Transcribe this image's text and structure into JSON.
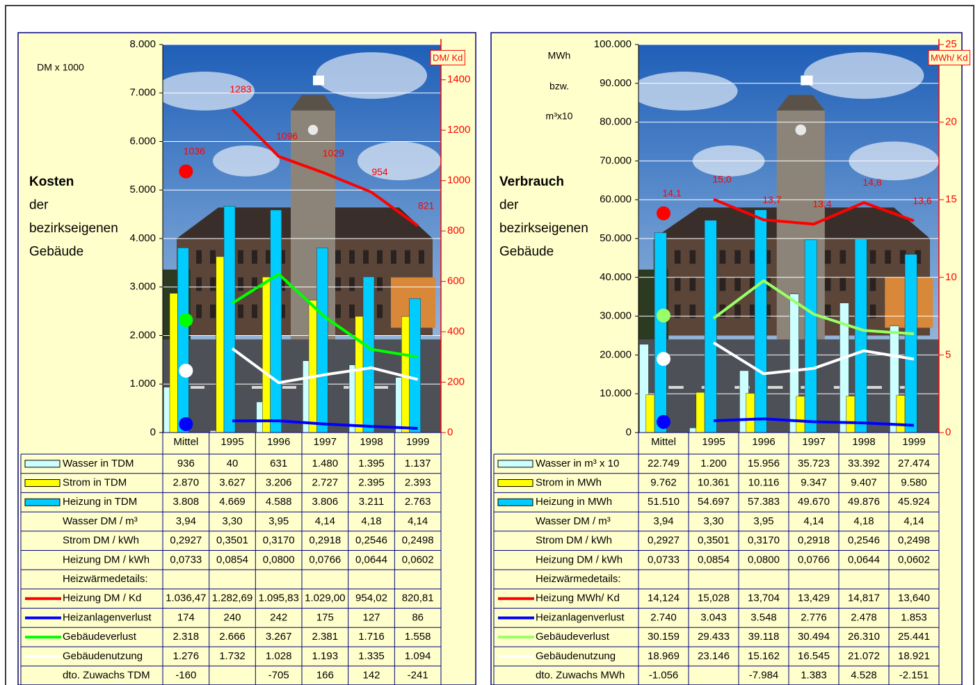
{
  "chart_data": [
    {
      "type": "bar",
      "side_title": [
        "Kosten",
        "der",
        "bezirkseigenen",
        "Gebäude"
      ],
      "y_unit": [
        "DM x 1000"
      ],
      "y2_unit": "DM/ Kd",
      "categories": [
        "Mittel",
        "1995",
        "1996",
        "1997",
        "1998",
        "1999"
      ],
      "ylim": [
        0,
        8000
      ],
      "yticks": [
        0,
        {
          "value": 1000,
          "label": "1.000"
        },
        {
          "value": 2000,
          "label": "2.000"
        },
        {
          "value": 3000,
          "label": "3.000"
        },
        {
          "value": 4000,
          "label": "4.000"
        },
        {
          "value": 5000,
          "label": "5.000"
        },
        {
          "value": 6000,
          "label": "6.000"
        },
        {
          "value": 7000,
          "label": "7.000"
        },
        {
          "value": 8000,
          "label": "8.000"
        }
      ],
      "y2lim": [
        0,
        1540
      ],
      "y2ticks": [
        0,
        200,
        400,
        600,
        800,
        1000,
        1200,
        1400
      ],
      "y2_color": "#ff0000",
      "grid": true,
      "series": [
        {
          "name": "Wasser in TDM",
          "type": "bar",
          "color": "#ccffff",
          "values": [
            936,
            40,
            631,
            1480,
            1395,
            1137
          ],
          "value_labels": [
            "936",
            "40",
            "631",
            "1.480",
            "1.395",
            "1.137"
          ]
        },
        {
          "name": "Strom in TDM",
          "type": "bar",
          "color": "#ffff00",
          "values": [
            2870,
            3627,
            3206,
            2727,
            2395,
            2393
          ],
          "value_labels": [
            "2.870",
            "3.627",
            "3.206",
            "2.727",
            "2.395",
            "2.393"
          ]
        },
        {
          "name": "Heizung in TDM",
          "type": "bar",
          "color": "#00ccff",
          "values": [
            3808,
            4669,
            4588,
            3806,
            3211,
            2763
          ],
          "value_labels": [
            "3.808",
            "4.669",
            "4.588",
            "3.806",
            "3.211",
            "2.763"
          ]
        },
        {
          "name": "Heizung DM / Kd",
          "type": "line",
          "axis": "y2",
          "color": "#ff0000",
          "values": [
            1036.47,
            1282.69,
            1095.83,
            1029.0,
            954.02,
            820.81
          ],
          "value_labels": [
            "1.036,47",
            "1.282,69",
            "1.095,83",
            "1.029,00",
            "954,02",
            "820,81"
          ],
          "data_labels": [
            "1036",
            "1283",
            "1096",
            "1029",
            "954",
            "821"
          ]
        },
        {
          "name": "Heizanlagenverlust",
          "type": "line",
          "color": "#0000ff",
          "values": [
            174,
            240,
            242,
            175,
            127,
            86
          ],
          "value_labels": [
            "174",
            "240",
            "242",
            "175",
            "127",
            "86"
          ]
        },
        {
          "name": "Gebäudeverlust",
          "type": "line",
          "color": "#00ff00",
          "values": [
            2318,
            2666,
            3267,
            2381,
            1716,
            1558
          ],
          "value_labels": [
            "2.318",
            "2.666",
            "3.267",
            "2.381",
            "1.716",
            "1.558"
          ]
        },
        {
          "name": "Gebäudenutzung",
          "type": "line",
          "color": "#ffffff",
          "values": [
            1276,
            1732,
            1028,
            1193,
            1335,
            1094
          ],
          "value_labels": [
            "1.276",
            "1.732",
            "1.028",
            "1.193",
            "1.335",
            "1.094"
          ]
        }
      ],
      "price_rows": [
        {
          "label": "Wasser DM / m³",
          "cells": [
            "3,94",
            "3,30",
            "3,95",
            "4,14",
            "4,18",
            "4,14"
          ]
        },
        {
          "label": "Strom DM / kWh",
          "cells": [
            "0,2927",
            "0,3501",
            "0,3170",
            "0,2918",
            "0,2546",
            "0,2498"
          ]
        },
        {
          "label": "Heizung DM / kWh",
          "cells": [
            "0,0733",
            "0,0854",
            "0,0800",
            "0,0766",
            "0,0644",
            "0,0602"
          ]
        }
      ],
      "heat_details_label": "Heizwärmedetails:",
      "growth_row": {
        "label": "dto. Zuwachs TDM",
        "cells": [
          "-160",
          null,
          "-705",
          "166",
          "142",
          "-241"
        ]
      }
    },
    {
      "type": "bar",
      "side_title": [
        "Verbrauch",
        "der",
        "bezirkseigenen",
        "Gebäude"
      ],
      "y_unit": [
        "MWh",
        "bzw.",
        "m³x10"
      ],
      "y2_unit": "MWh/ Kd",
      "categories": [
        "Mittel",
        "1995",
        "1996",
        "1997",
        "1998",
        "1999"
      ],
      "ylim": [
        0,
        100000
      ],
      "yticks": [
        0,
        {
          "value": 10000,
          "label": "10.000"
        },
        {
          "value": 20000,
          "label": "20.000"
        },
        {
          "value": 30000,
          "label": "30.000"
        },
        {
          "value": 40000,
          "label": "40.000"
        },
        {
          "value": 50000,
          "label": "50.000"
        },
        {
          "value": 60000,
          "label": "60.000"
        },
        {
          "value": 70000,
          "label": "70.000"
        },
        {
          "value": 80000,
          "label": "80.000"
        },
        {
          "value": 90000,
          "label": "90.000"
        },
        {
          "value": 100000,
          "label": "100.000"
        }
      ],
      "y2lim": [
        0,
        25
      ],
      "y2ticks": [
        0,
        5,
        10,
        15,
        20,
        25
      ],
      "y2_color": "#ff0000",
      "grid": true,
      "series": [
        {
          "name": "Wasser in m³ x 10",
          "type": "bar",
          "color": "#ccffff",
          "values": [
            22749,
            1200,
            15956,
            35723,
            33392,
            27474
          ],
          "value_labels": [
            "22.749",
            "1.200",
            "15.956",
            "35.723",
            "33.392",
            "27.474"
          ]
        },
        {
          "name": "Strom in MWh",
          "type": "bar",
          "color": "#ffff00",
          "values": [
            9762,
            10361,
            10116,
            9347,
            9407,
            9580
          ],
          "value_labels": [
            "9.762",
            "10.361",
            "10.116",
            "9.347",
            "9.407",
            "9.580"
          ]
        },
        {
          "name": "Heizung in MWh",
          "type": "bar",
          "color": "#00ccff",
          "values": [
            51510,
            54697,
            57383,
            49670,
            49876,
            45924
          ],
          "value_labels": [
            "51.510",
            "54.697",
            "57.383",
            "49.670",
            "49.876",
            "45.924"
          ]
        },
        {
          "name": "Heizung MWh/ Kd",
          "type": "line",
          "axis": "y2",
          "color": "#ff0000",
          "values": [
            14.124,
            15.028,
            13.704,
            13.429,
            14.817,
            13.64
          ],
          "value_labels": [
            "14,124",
            "15,028",
            "13,704",
            "13,429",
            "14,817",
            "13,640"
          ],
          "data_labels": [
            "14,1",
            "15,0",
            "13,7",
            "13,4",
            "14,8",
            "13,6"
          ]
        },
        {
          "name": "Heizanlagenverlust",
          "type": "line",
          "color": "#0000ff",
          "values": [
            2740,
            3043,
            3548,
            2776,
            2478,
            1853
          ],
          "value_labels": [
            "2.740",
            "3.043",
            "3.548",
            "2.776",
            "2.478",
            "1.853"
          ]
        },
        {
          "name": "Gebäudeverlust",
          "type": "line",
          "color": "#99ff66",
          "values": [
            30159,
            29433,
            39118,
            30494,
            26310,
            25441
          ],
          "value_labels": [
            "30.159",
            "29.433",
            "39.118",
            "30.494",
            "26.310",
            "25.441"
          ]
        },
        {
          "name": "Gebäudenutzung",
          "type": "line",
          "color": "#ffffff",
          "values": [
            18969,
            23146,
            15162,
            16545,
            21072,
            18921
          ],
          "value_labels": [
            "18.969",
            "23.146",
            "15.162",
            "16.545",
            "21.072",
            "18.921"
          ]
        }
      ],
      "price_rows": [
        {
          "label": "Wasser DM / m³",
          "cells": [
            "3,94",
            "3,30",
            "3,95",
            "4,14",
            "4,18",
            "4,14"
          ]
        },
        {
          "label": "Strom DM / kWh",
          "cells": [
            "0,2927",
            "0,3501",
            "0,3170",
            "0,2918",
            "0,2546",
            "0,2498"
          ]
        },
        {
          "label": "Heizung DM / kWh",
          "cells": [
            "0,0733",
            "0,0854",
            "0,0800",
            "0,0766",
            "0,0644",
            "0,0602"
          ]
        }
      ],
      "heat_details_label": "Heizwärmedetails:",
      "growth_row": {
        "label": "dto. Zuwachs MWh",
        "cells": [
          "-1.056",
          null,
          "-7.984",
          "1.383",
          "4.528",
          "-2.151"
        ]
      }
    }
  ]
}
